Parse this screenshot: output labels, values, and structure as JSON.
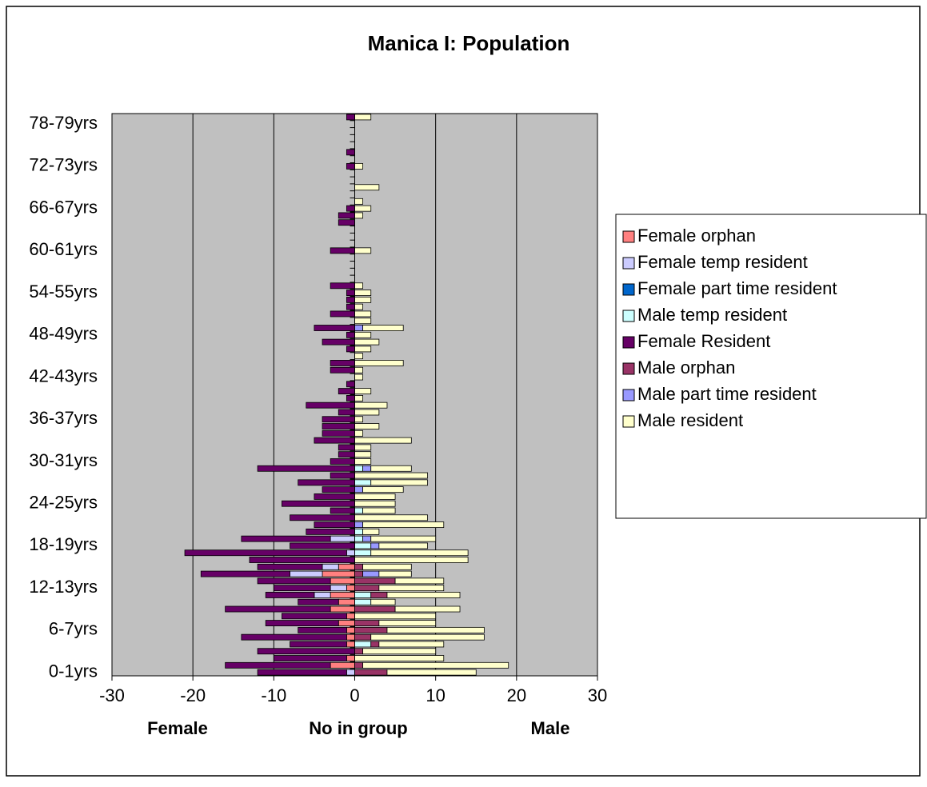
{
  "chart_data": {
    "type": "bar",
    "orientation": "horizontal",
    "stacked": true,
    "title": "Manica I: Population",
    "xlabel": "No in group",
    "annotations": [
      "Female",
      "Male"
    ],
    "categories": [
      "0-1yrs",
      null,
      null,
      null,
      null,
      null,
      "6-7yrs",
      null,
      null,
      null,
      null,
      null,
      "12-13yrs",
      null,
      null,
      null,
      null,
      null,
      "18-19yrs",
      null,
      null,
      null,
      null,
      null,
      "24-25yrs",
      null,
      null,
      null,
      null,
      null,
      "30-31yrs",
      null,
      null,
      null,
      null,
      null,
      "36-37yrs",
      null,
      null,
      null,
      null,
      null,
      "42-43yrs",
      null,
      null,
      null,
      null,
      null,
      "48-49yrs",
      null,
      null,
      null,
      null,
      null,
      "54-55yrs",
      null,
      null,
      null,
      null,
      null,
      "60-61yrs",
      null,
      null,
      null,
      null,
      null,
      "66-67yrs",
      null,
      null,
      null,
      null,
      null,
      "72-73yrs",
      null,
      null,
      null,
      null,
      null,
      "78-79yrs",
      null
    ],
    "xlim": [
      -30,
      30
    ],
    "xticks": [
      -30,
      -20,
      -10,
      0,
      10,
      20,
      30
    ],
    "grid": true,
    "legend": "right",
    "series": [
      {
        "name": "Female orphan",
        "color": "#ff8080",
        "values": [
          0,
          -3,
          -1,
          0,
          -1,
          -1,
          -1,
          -2,
          -1,
          -3,
          -2,
          -3,
          -1,
          -3,
          -4,
          -2,
          0,
          0,
          0,
          0,
          0,
          0,
          0,
          0,
          0,
          0,
          0,
          0,
          0,
          0,
          0,
          0,
          0,
          0,
          0,
          0,
          0,
          0,
          0,
          0,
          0,
          0,
          0,
          0,
          0,
          0,
          0,
          0,
          0,
          0,
          0,
          0,
          0,
          0,
          0,
          0,
          0,
          0,
          0,
          0,
          0,
          0,
          0,
          0,
          0,
          0,
          0,
          0,
          0,
          0,
          0,
          0,
          0,
          0,
          0,
          0,
          0,
          0,
          0,
          0
        ]
      },
      {
        "name": "Female temp resident",
        "color": "#ccccff",
        "values": [
          -1,
          0,
          0,
          0,
          0,
          0,
          0,
          0,
          0,
          0,
          0,
          -2,
          -2,
          0,
          -4,
          -2,
          0,
          -1,
          0,
          -3,
          0,
          0,
          0,
          0,
          0,
          0,
          0,
          0,
          0,
          0,
          0,
          0,
          0,
          0,
          0,
          0,
          0,
          0,
          0,
          0,
          0,
          0,
          0,
          0,
          0,
          0,
          0,
          0,
          0,
          0,
          0,
          0,
          0,
          0,
          0,
          0,
          0,
          0,
          0,
          0,
          0,
          0,
          0,
          0,
          0,
          0,
          0,
          0,
          0,
          0,
          0,
          0,
          0,
          0,
          0,
          0,
          0,
          0,
          0,
          0
        ]
      },
      {
        "name": "Female part time resident",
        "color": "#0066cc",
        "values": [
          0,
          0,
          0,
          0,
          0,
          0,
          0,
          0,
          0,
          0,
          0,
          0,
          0,
          0,
          0,
          0,
          0,
          0,
          0,
          0,
          0,
          0,
          0,
          0,
          0,
          0,
          0,
          0,
          0,
          0,
          0,
          0,
          0,
          0,
          0,
          0,
          0,
          0,
          0,
          0,
          0,
          0,
          0,
          0,
          0,
          0,
          0,
          0,
          0,
          0,
          0,
          0,
          0,
          0,
          0,
          0,
          0,
          0,
          0,
          0,
          0,
          0,
          0,
          0,
          0,
          0,
          0,
          0,
          0,
          0,
          0,
          0,
          0,
          0,
          0,
          0,
          0,
          0,
          0,
          0
        ]
      },
      {
        "name": "Male temp resident",
        "color": "#ccffff",
        "values": [
          0,
          0,
          0,
          0,
          2,
          0,
          0,
          0,
          0,
          0,
          2,
          2,
          0,
          0,
          0,
          0,
          0,
          2,
          2,
          1,
          1,
          0,
          0,
          1,
          0,
          0,
          0,
          2,
          0,
          1,
          0,
          0,
          0,
          0,
          0,
          0,
          0,
          0,
          0,
          0,
          0,
          0,
          0,
          0,
          0,
          0,
          0,
          0,
          0,
          0,
          0,
          0,
          0,
          0,
          0,
          0,
          0,
          0,
          0,
          0,
          0,
          0,
          0,
          0,
          0,
          0,
          0,
          0,
          0,
          0,
          0,
          0,
          0,
          0,
          0,
          0,
          0,
          0,
          0,
          0
        ]
      },
      {
        "name": "Female Resident",
        "color": "#660066",
        "values": [
          -11,
          -13,
          -9,
          -12,
          -7,
          -13,
          -6,
          -9,
          -8,
          -13,
          -5,
          -6,
          -7,
          -9,
          -11,
          -8,
          -13,
          -20,
          -8,
          -11,
          -6,
          -5,
          -8,
          -3,
          -9,
          -5,
          -4,
          -7,
          -3,
          -12,
          -3,
          -2,
          -2,
          -5,
          -4,
          -4,
          -4,
          -2,
          -6,
          -1,
          -2,
          -1,
          0,
          -3,
          -3,
          0,
          -1,
          -4,
          -1,
          -5,
          0,
          -3,
          -1,
          -1,
          -1,
          -3,
          0,
          0,
          0,
          0,
          -3,
          0,
          0,
          0,
          -2,
          -2,
          -1,
          0,
          0,
          0,
          0,
          0,
          -1,
          0,
          -1,
          0,
          0,
          0,
          0,
          -1
        ]
      },
      {
        "name": "Male orphan",
        "color": "#993366",
        "values": [
          4,
          1,
          0,
          1,
          1,
          2,
          4,
          3,
          0,
          5,
          0,
          2,
          3,
          5,
          1,
          1,
          0,
          0,
          0,
          0,
          0,
          0,
          0,
          0,
          0,
          0,
          0,
          0,
          0,
          0,
          0,
          0,
          0,
          0,
          0,
          0,
          0,
          0,
          0,
          0,
          0,
          0,
          0,
          0,
          0,
          0,
          0,
          0,
          0,
          0,
          0,
          0,
          0,
          0,
          0,
          0,
          0,
          0,
          0,
          0,
          0,
          0,
          0,
          0,
          0,
          0,
          0,
          0,
          0,
          0,
          0,
          0,
          0,
          0,
          0,
          0,
          0,
          0,
          0,
          0
        ]
      },
      {
        "name": "Male part time resident",
        "color": "#9999ff",
        "values": [
          0,
          0,
          0,
          0,
          0,
          0,
          0,
          0,
          0,
          0,
          0,
          0,
          0,
          0,
          2,
          0,
          0,
          0,
          1,
          1,
          0,
          1,
          0,
          0,
          0,
          0,
          1,
          0,
          0,
          1,
          0,
          0,
          0,
          0,
          0,
          0,
          0,
          0,
          0,
          0,
          0,
          0,
          0,
          0,
          0,
          0,
          0,
          0,
          0,
          1,
          0,
          0,
          0,
          0,
          0,
          0,
          0,
          0,
          0,
          0,
          0,
          0,
          0,
          0,
          0,
          0,
          0,
          0,
          0,
          0,
          0,
          0,
          0,
          0,
          0,
          0,
          0,
          0,
          0,
          0
        ]
      },
      {
        "name": "Male resident",
        "color": "#ffffcc",
        "values": [
          11,
          18,
          11,
          9,
          8,
          14,
          12,
          7,
          10,
          8,
          3,
          9,
          8,
          6,
          4,
          6,
          14,
          12,
          6,
          8,
          2,
          10,
          9,
          4,
          5,
          5,
          5,
          7,
          9,
          5,
          2,
          2,
          2,
          7,
          1,
          3,
          1,
          3,
          4,
          1,
          2,
          0,
          1,
          1,
          6,
          1,
          2,
          3,
          2,
          5,
          2,
          2,
          1,
          2,
          2,
          1,
          0,
          0,
          0,
          0,
          2,
          0,
          0,
          0,
          0,
          1,
          2,
          1,
          0,
          3,
          0,
          0,
          1,
          0,
          0,
          0,
          0,
          0,
          0,
          2
        ]
      }
    ]
  }
}
